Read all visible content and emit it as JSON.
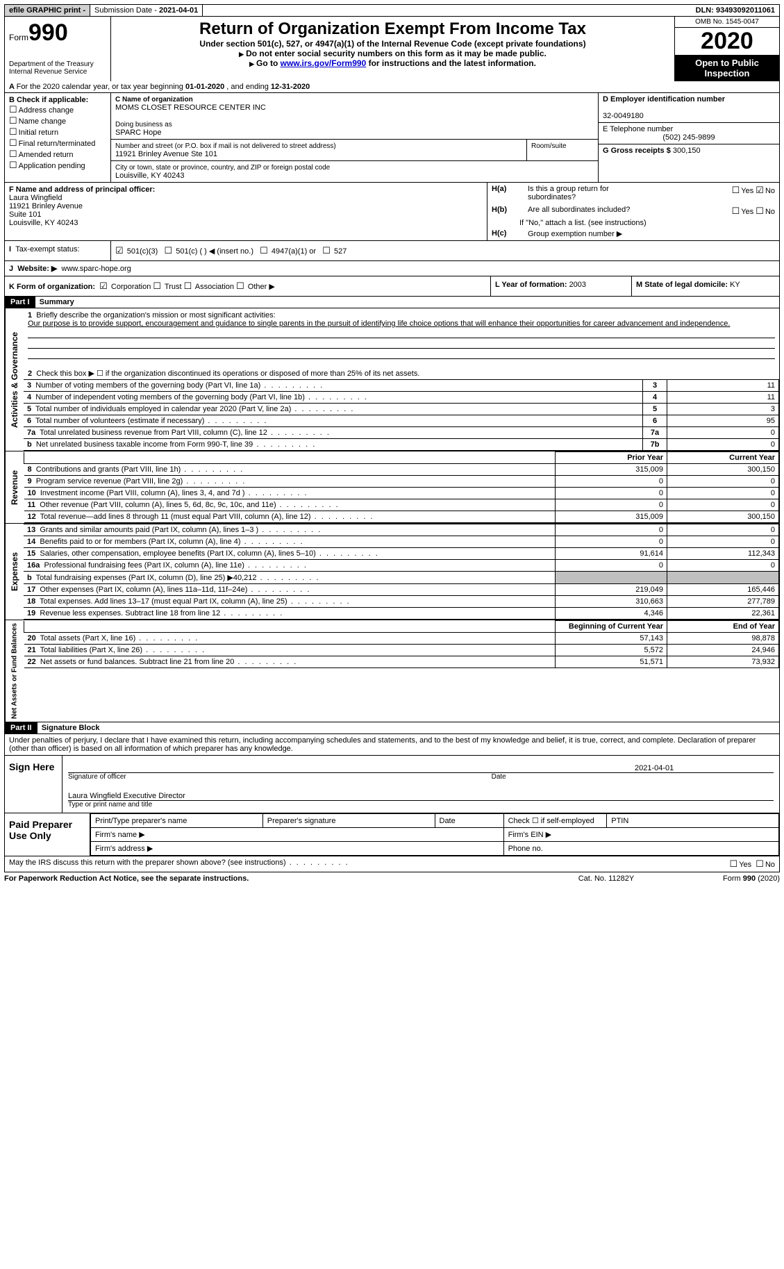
{
  "topbar": {
    "efile": "efile GRAPHIC print -",
    "submission_label": "Submission Date - ",
    "submission_date": "2021-04-01",
    "dln_label": "DLN: ",
    "dln": "93493092011061"
  },
  "header": {
    "form_label": "Form",
    "form_no": "990",
    "dept": "Department of the Treasury",
    "irs": "Internal Revenue Service",
    "title": "Return of Organization Exempt From Income Tax",
    "subtitle": "Under section 501(c), 527, or 4947(a)(1) of the Internal Revenue Code (except private foundations)",
    "note1": "Do not enter social security numbers on this form as it may be made public.",
    "note2_pre": "Go to ",
    "note2_link": "www.irs.gov/Form990",
    "note2_post": " for instructions and the latest information.",
    "omb": "OMB No. 1545-0047",
    "year": "2020",
    "inspection": "Open to Public Inspection"
  },
  "periodA": {
    "text_pre": "For the 2020 calendar year, or tax year beginning ",
    "begin": "01-01-2020",
    "mid": " , and ending ",
    "end": "12-31-2020"
  },
  "boxB": {
    "title": "B Check if applicable:",
    "items": [
      "Address change",
      "Name change",
      "Initial return",
      "Final return/terminated",
      "Amended return",
      "Application pending"
    ]
  },
  "boxC": {
    "label_name": "C Name of organization",
    "name": "MOMS CLOSET RESOURCE CENTER INC",
    "dba_label": "Doing business as",
    "dba": "SPARC Hope",
    "addr_label": "Number and street (or P.O. box if mail is not delivered to street address)",
    "room_label": "Room/suite",
    "addr": "11921 Brinley Avenue Ste 101",
    "city_label": "City or town, state or province, country, and ZIP or foreign postal code",
    "city": "Louisville, KY  40243"
  },
  "boxD": {
    "label": "D Employer identification number",
    "value": "32-0049180"
  },
  "boxE": {
    "label": "E Telephone number",
    "value": "(502) 245-9899"
  },
  "boxG": {
    "label": "G Gross receipts $ ",
    "value": "300,150"
  },
  "boxF": {
    "label": "F Name and address of principal officer:",
    "lines": [
      "Laura Wingfield",
      "11921 Brinley Avenue",
      "Suite 101",
      "Louisville, KY  40243"
    ]
  },
  "boxH": {
    "a_label": "Is this a group return for",
    "a_label2": "subordinates?",
    "a_yes": "Yes",
    "a_no": "No",
    "b_label": "Are all subordinates included?",
    "b_yes": "Yes",
    "b_no": "No",
    "note": "If \"No,\" attach a list. (see instructions)",
    "c_label": "Group exemption number ▶"
  },
  "boxI": {
    "label": "Tax-exempt status:",
    "opts": [
      "501(c)(3)",
      "501(c) (  ) ◀ (insert no.)",
      "4947(a)(1) or",
      "527"
    ]
  },
  "boxJ": {
    "label": "Website: ▶",
    "value": "www.sparc-hope.org"
  },
  "boxK": {
    "label": "K Form of organization:",
    "opts": [
      "Corporation",
      "Trust",
      "Association",
      "Other ▶"
    ]
  },
  "boxL": {
    "label": "L Year of formation: ",
    "value": "2003"
  },
  "boxM": {
    "label": "M State of legal domicile: ",
    "value": "KY"
  },
  "part1": {
    "header": "Part I",
    "title": "Summary",
    "line1_label": "Briefly describe the organization's mission or most significant activities:",
    "line1_text": "Our purpose is to provide support, encouragement and guidance to single parents in the pursuit of identifying life choice options that will enhance their opportunities for career advancement and independence.",
    "line2": "Check this box ▶ ☐  if the organization discontinued its operations or disposed of more than 25% of its net assets.",
    "governance_label": "Activities & Governance",
    "revenue_label": "Revenue",
    "expenses_label": "Expenses",
    "netassets_label": "Net Assets or Fund Balances",
    "prior_year": "Prior Year",
    "current_year": "Current Year",
    "begin_year": "Beginning of Current Year",
    "end_year": "End of Year",
    "rows_gov": [
      {
        "n": "3",
        "d": "Number of voting members of the governing body (Part VI, line 1a)",
        "c": "3",
        "v": "11"
      },
      {
        "n": "4",
        "d": "Number of independent voting members of the governing body (Part VI, line 1b)",
        "c": "4",
        "v": "11"
      },
      {
        "n": "5",
        "d": "Total number of individuals employed in calendar year 2020 (Part V, line 2a)",
        "c": "5",
        "v": "3"
      },
      {
        "n": "6",
        "d": "Total number of volunteers (estimate if necessary)",
        "c": "6",
        "v": "95"
      },
      {
        "n": "7a",
        "d": "Total unrelated business revenue from Part VIII, column (C), line 12",
        "c": "7a",
        "v": "0"
      },
      {
        "n": "b",
        "d": "Net unrelated business taxable income from Form 990-T, line 39",
        "c": "7b",
        "v": "0"
      }
    ],
    "rows_rev": [
      {
        "n": "8",
        "d": "Contributions and grants (Part VIII, line 1h)",
        "p": "315,009",
        "c": "300,150"
      },
      {
        "n": "9",
        "d": "Program service revenue (Part VIII, line 2g)",
        "p": "0",
        "c": "0"
      },
      {
        "n": "10",
        "d": "Investment income (Part VIII, column (A), lines 3, 4, and 7d )",
        "p": "0",
        "c": "0"
      },
      {
        "n": "11",
        "d": "Other revenue (Part VIII, column (A), lines 5, 6d, 8c, 9c, 10c, and 11e)",
        "p": "0",
        "c": "0"
      },
      {
        "n": "12",
        "d": "Total revenue—add lines 8 through 11 (must equal Part VIII, column (A), line 12)",
        "p": "315,009",
        "c": "300,150"
      }
    ],
    "rows_exp": [
      {
        "n": "13",
        "d": "Grants and similar amounts paid (Part IX, column (A), lines 1–3 )",
        "p": "0",
        "c": "0"
      },
      {
        "n": "14",
        "d": "Benefits paid to or for members (Part IX, column (A), line 4)",
        "p": "0",
        "c": "0"
      },
      {
        "n": "15",
        "d": "Salaries, other compensation, employee benefits (Part IX, column (A), lines 5–10)",
        "p": "91,614",
        "c": "112,343"
      },
      {
        "n": "16a",
        "d": "Professional fundraising fees (Part IX, column (A), line 11e)",
        "p": "0",
        "c": "0"
      },
      {
        "n": "b",
        "d": "Total fundraising expenses (Part IX, column (D), line 25) ▶40,212",
        "p": "GREY",
        "c": "GREY"
      },
      {
        "n": "17",
        "d": "Other expenses (Part IX, column (A), lines 11a–11d, 11f–24e)",
        "p": "219,049",
        "c": "165,446"
      },
      {
        "n": "18",
        "d": "Total expenses. Add lines 13–17 (must equal Part IX, column (A), line 25)",
        "p": "310,663",
        "c": "277,789"
      },
      {
        "n": "19",
        "d": "Revenue less expenses. Subtract line 18 from line 12",
        "p": "4,346",
        "c": "22,361"
      }
    ],
    "rows_net": [
      {
        "n": "20",
        "d": "Total assets (Part X, line 16)",
        "p": "57,143",
        "c": "98,878"
      },
      {
        "n": "21",
        "d": "Total liabilities (Part X, line 26)",
        "p": "5,572",
        "c": "24,946"
      },
      {
        "n": "22",
        "d": "Net assets or fund balances. Subtract line 21 from line 20",
        "p": "51,571",
        "c": "73,932"
      }
    ]
  },
  "part2": {
    "header": "Part II",
    "title": "Signature Block",
    "declaration": "Under penalties of perjury, I declare that I have examined this return, including accompanying schedules and statements, and to the best of my knowledge and belief, it is true, correct, and complete. Declaration of preparer (other than officer) is based on all information of which preparer has any knowledge.",
    "sign_here": "Sign Here",
    "sig_officer": "Signature of officer",
    "sig_date": "2021-04-01",
    "date_label": "Date",
    "officer_name": "Laura Wingfield  Executive Director",
    "name_title": "Type or print name and title",
    "paid_prep": "Paid Preparer Use Only",
    "pt_name": "Print/Type preparer's name",
    "pt_sig": "Preparer's signature",
    "pt_date": "Date",
    "pt_self": "Check ☐ if self-employed",
    "pt_ptin": "PTIN",
    "firm_name": "Firm's name   ▶",
    "firm_ein": "Firm's EIN ▶",
    "firm_addr": "Firm's address ▶",
    "phone": "Phone no."
  },
  "footer": {
    "discuss": "May the IRS discuss this return with the preparer shown above? (see instructions)",
    "yes": "Yes",
    "no": "No",
    "paperwork": "For Paperwork Reduction Act Notice, see the separate instructions.",
    "cat": "Cat. No. 11282Y",
    "form": "Form 990 (2020)"
  }
}
